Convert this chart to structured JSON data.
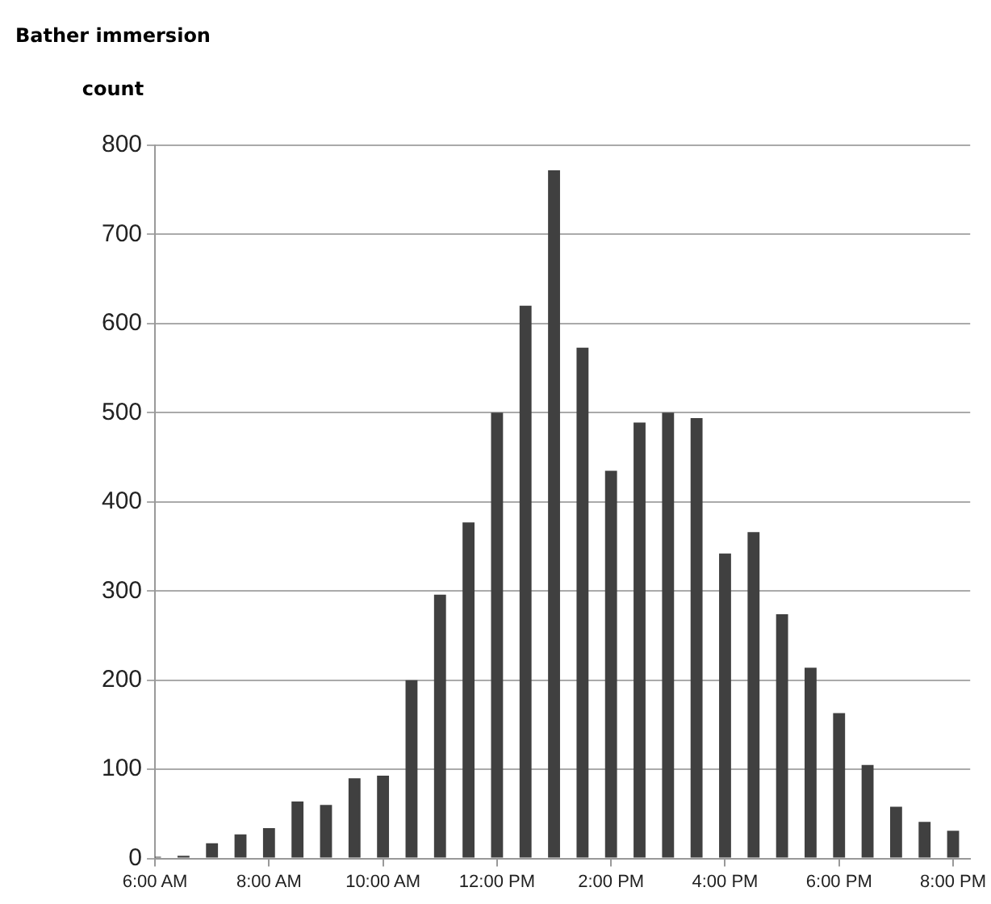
{
  "chart_data": {
    "type": "bar",
    "ylabel": "Bather immersion count",
    "x": [
      6,
      6.5,
      7,
      7.5,
      8,
      8.5,
      9,
      9.5,
      10,
      10.5,
      11,
      11.5,
      12,
      12.5,
      13,
      13.5,
      14,
      14.5,
      15,
      15.5,
      16,
      16.5,
      17,
      17.5,
      18,
      18.5,
      19,
      19.5,
      20
    ],
    "values": [
      2,
      3,
      17,
      27,
      34,
      64,
      60,
      90,
      93,
      200,
      296,
      377,
      500,
      620,
      772,
      573,
      435,
      489,
      500,
      494,
      342,
      366,
      274,
      214,
      163,
      105,
      58,
      41,
      31
    ],
    "color": "#404040",
    "xlim": [
      6,
      20.3
    ],
    "xticks": [
      {
        "value": 6,
        "label": "6:00 AM"
      },
      {
        "value": 8,
        "label": "8:00 AM"
      },
      {
        "value": 10,
        "label": "10:00 AM"
      },
      {
        "value": 12,
        "label": "12:00 PM"
      },
      {
        "value": 14,
        "label": "2:00 PM"
      },
      {
        "value": 16,
        "label": "4:00 PM"
      },
      {
        "value": 18,
        "label": "6:00 PM"
      },
      {
        "value": 20,
        "label": "8:00 PM"
      }
    ],
    "ylim": [
      0,
      800
    ],
    "yticks": [
      0,
      100,
      200,
      300,
      400,
      500,
      600,
      700,
      800
    ],
    "grid": "y",
    "legend": false
  }
}
